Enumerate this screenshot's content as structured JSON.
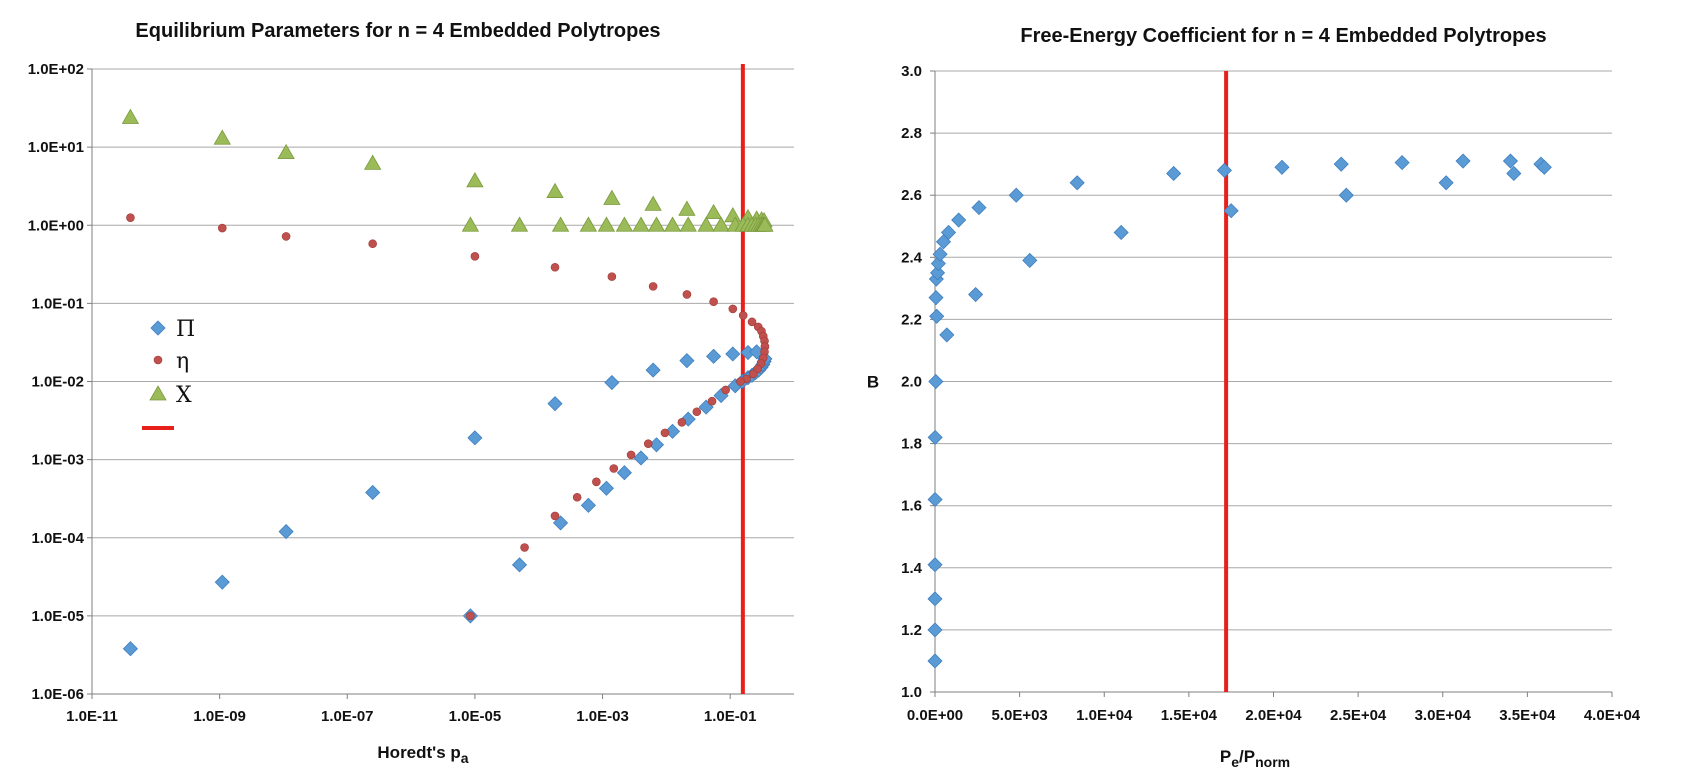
{
  "chart_data": [
    {
      "type": "scatter",
      "title": "Equilibrium Parameters for n = 4 Embedded Polytropes",
      "xlabel": "Horedt's p",
      "xlabel_sub": "a",
      "ylabel": "",
      "x_scale": "log",
      "y_scale": "log",
      "xlim": [
        1e-11,
        1
      ],
      "ylim": [
        1e-06,
        100
      ],
      "x_ticks": [
        "1.0E-11",
        "1.0E-09",
        "1.0E-07",
        "1.0E-05",
        "1.0E-03",
        "1.0E-01"
      ],
      "x_tick_values": [
        1e-11,
        1e-09,
        1e-07,
        1e-05,
        0.001,
        0.1
      ],
      "y_ticks": [
        "1.0E-06",
        "1.0E-05",
        "1.0E-04",
        "1.0E-03",
        "1.0E-02",
        "1.0E-01",
        "1.0E+00",
        "1.0E+01",
        "1.0E+02"
      ],
      "y_tick_values": [
        1e-06,
        1e-05,
        0.0001,
        0.001,
        0.01,
        0.1,
        1,
        10,
        100
      ],
      "grid": "horizontal",
      "legend_position": "left",
      "vertical_line": {
        "x": 0.158,
        "color": "#e8201c"
      },
      "series": [
        {
          "name": "Π",
          "marker": "diamond",
          "color": "#5b9bd5",
          "points": [
            [
              4e-11,
              3.8e-06
            ],
            [
              1.1e-09,
              2.7e-05
            ],
            [
              1.1e-08,
              0.00012
            ],
            [
              2.5e-07,
              0.00038
            ],
            [
              1e-05,
              0.0019
            ],
            [
              0.00018,
              0.0052
            ],
            [
              0.0014,
              0.0097
            ],
            [
              0.0062,
              0.014
            ],
            [
              0.021,
              0.0185
            ],
            [
              0.055,
              0.021
            ],
            [
              0.11,
              0.0225
            ],
            [
              0.19,
              0.0235
            ],
            [
              0.26,
              0.024
            ],
            [
              8.5e-06,
              1e-05
            ],
            [
              5e-05,
              4.5e-05
            ],
            [
              0.00022,
              0.000155
            ],
            [
              0.0006,
              0.00026
            ],
            [
              0.00115,
              0.00043
            ],
            [
              0.0022,
              0.00068
            ],
            [
              0.004,
              0.00105
            ],
            [
              0.007,
              0.00155
            ],
            [
              0.0125,
              0.0023
            ],
            [
              0.022,
              0.0033
            ],
            [
              0.042,
              0.0047
            ],
            [
              0.072,
              0.0066
            ],
            [
              0.12,
              0.0088
            ],
            [
              0.155,
              0.01
            ],
            [
              0.19,
              0.0112
            ],
            [
              0.22,
              0.012
            ],
            [
              0.25,
              0.013
            ],
            [
              0.28,
              0.014
            ],
            [
              0.305,
              0.0152
            ],
            [
              0.325,
              0.0165
            ],
            [
              0.34,
              0.018
            ],
            [
              0.35,
              0.0195
            ]
          ]
        },
        {
          "name": "η",
          "marker": "circle",
          "color": "#c0504d",
          "points": [
            [
              4e-11,
              1.25
            ],
            [
              1.1e-09,
              0.92
            ],
            [
              1.1e-08,
              0.72
            ],
            [
              2.5e-07,
              0.58
            ],
            [
              1e-05,
              0.4
            ],
            [
              0.00018,
              0.29
            ],
            [
              0.0014,
              0.22
            ],
            [
              0.0062,
              0.165
            ],
            [
              0.021,
              0.13
            ],
            [
              0.055,
              0.105
            ],
            [
              0.11,
              0.085
            ],
            [
              0.16,
              0.07
            ],
            [
              0.22,
              0.058
            ],
            [
              0.275,
              0.05
            ],
            [
              0.31,
              0.044
            ],
            [
              0.33,
              0.038
            ],
            [
              0.345,
              0.033
            ],
            [
              0.35,
              0.028
            ],
            [
              0.345,
              0.024
            ],
            [
              0.33,
              0.02
            ],
            [
              0.305,
              0.017
            ],
            [
              0.27,
              0.0145
            ],
            [
              0.23,
              0.0125
            ],
            [
              0.18,
              0.0108
            ],
            [
              0.145,
              0.01
            ],
            [
              0.085,
              0.0078
            ],
            [
              0.052,
              0.0056
            ],
            [
              0.03,
              0.0041
            ],
            [
              0.0175,
              0.003
            ],
            [
              0.0095,
              0.0022
            ],
            [
              0.0052,
              0.0016
            ],
            [
              0.0028,
              0.00115
            ],
            [
              0.0015,
              0.00077
            ],
            [
              0.0008,
              0.00052
            ],
            [
              0.0004,
              0.00033
            ],
            [
              0.00018,
              0.00019
            ],
            [
              6e-05,
              7.5e-05
            ],
            [
              8.5e-06,
              1e-05
            ]
          ]
        },
        {
          "name": "X",
          "marker": "triangle",
          "color": "#9bbb59",
          "points": [
            [
              4e-11,
              24
            ],
            [
              1.1e-09,
              13
            ],
            [
              1.1e-08,
              8.5
            ],
            [
              2.5e-07,
              6.2
            ],
            [
              1e-05,
              3.7
            ],
            [
              0.00018,
              2.7
            ],
            [
              0.0014,
              2.2
            ],
            [
              0.0062,
              1.85
            ],
            [
              0.021,
              1.6
            ],
            [
              0.055,
              1.45
            ],
            [
              0.11,
              1.32
            ],
            [
              0.19,
              1.25
            ],
            [
              0.26,
              1.2
            ],
            [
              0.31,
              1.17
            ],
            [
              0.34,
              1.14
            ],
            [
              8.5e-06,
              1
            ],
            [
              5e-05,
              1
            ],
            [
              0.00022,
              1
            ],
            [
              0.0006,
              1
            ],
            [
              0.00115,
              1
            ],
            [
              0.0022,
              1
            ],
            [
              0.004,
              1
            ],
            [
              0.007,
              1
            ],
            [
              0.0125,
              1
            ],
            [
              0.022,
              1
            ],
            [
              0.042,
              1
            ],
            [
              0.072,
              1
            ],
            [
              0.12,
              1
            ],
            [
              0.16,
              1
            ],
            [
              0.19,
              1
            ],
            [
              0.22,
              1
            ],
            [
              0.25,
              1
            ],
            [
              0.28,
              1
            ],
            [
              0.305,
              1
            ],
            [
              0.325,
              1
            ],
            [
              0.34,
              1
            ],
            [
              0.35,
              1
            ]
          ]
        }
      ],
      "legend_line": {
        "color": "#e8201c"
      }
    },
    {
      "type": "scatter",
      "title": "Free-Energy Coefficient for n = 4 Embedded Polytropes",
      "xlabel": "P",
      "xlabel_sub": "e",
      "xlabel_mid": "/P",
      "xlabel_sub2": "norm",
      "ylabel": "B",
      "xlim": [
        0,
        40000
      ],
      "ylim": [
        1.0,
        3.0
      ],
      "x_ticks": [
        "0.0E+00",
        "5.0E+03",
        "1.0E+04",
        "1.5E+04",
        "2.0E+04",
        "2.5E+04",
        "3.0E+04",
        "3.5E+04",
        "4.0E+04"
      ],
      "x_tick_values": [
        0,
        5000,
        10000,
        15000,
        20000,
        25000,
        30000,
        35000,
        40000
      ],
      "y_ticks": [
        "1.0",
        "1.2",
        "1.4",
        "1.6",
        "1.8",
        "2.0",
        "2.2",
        "2.4",
        "2.6",
        "2.8",
        "3.0"
      ],
      "y_tick_values": [
        1.0,
        1.2,
        1.4,
        1.6,
        1.8,
        2.0,
        2.2,
        2.4,
        2.6,
        2.8,
        3.0
      ],
      "grid": "horizontal",
      "vertical_line": {
        "x": 17200,
        "color": "#e8201c"
      },
      "series": [
        {
          "name": "",
          "marker": "diamond",
          "color": "#5b9bd5",
          "points": [
            [
              0,
              1.1
            ],
            [
              0,
              1.2
            ],
            [
              0,
              1.3
            ],
            [
              0,
              1.41
            ],
            [
              5,
              1.62
            ],
            [
              10,
              1.82
            ],
            [
              50,
              2.0
            ],
            [
              100,
              2.21
            ],
            [
              60,
              2.27
            ],
            [
              80,
              2.33
            ],
            [
              150,
              2.35
            ],
            [
              200,
              2.38
            ],
            [
              300,
              2.41
            ],
            [
              500,
              2.45
            ],
            [
              800,
              2.48
            ],
            [
              1400,
              2.52
            ],
            [
              2600,
              2.56
            ],
            [
              4800,
              2.6
            ],
            [
              8400,
              2.64
            ],
            [
              14100,
              2.67
            ],
            [
              17100,
              2.68
            ],
            [
              20500,
              2.69
            ],
            [
              24000,
              2.7
            ],
            [
              27600,
              2.705
            ],
            [
              31200,
              2.71
            ],
            [
              34000,
              2.71
            ],
            [
              35800,
              2.7
            ],
            [
              36000,
              2.69
            ],
            [
              700,
              2.15
            ],
            [
              2400,
              2.28
            ],
            [
              5600,
              2.39
            ],
            [
              11000,
              2.48
            ],
            [
              17500,
              2.55
            ],
            [
              24300,
              2.6
            ],
            [
              30200,
              2.64
            ],
            [
              34200,
              2.67
            ]
          ]
        }
      ]
    }
  ]
}
